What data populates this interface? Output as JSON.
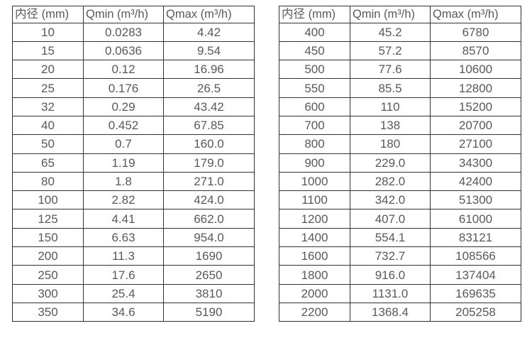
{
  "page": {
    "background": "#ffffff",
    "border_color": "#333333",
    "text_color": "#595959"
  },
  "tables": [
    {
      "name": "flow-rate-table-small-diameters",
      "headers": [
        "内径 (mm)",
        "Qmin (m³/h)",
        "Qmax (m³/h)"
      ],
      "rows": [
        [
          "10",
          "0.0283",
          "4.42"
        ],
        [
          "15",
          "0.0636",
          "9.54"
        ],
        [
          "20",
          "0.12",
          "16.96"
        ],
        [
          "25",
          "0.176",
          "26.5"
        ],
        [
          "32",
          "0.29",
          "43.42"
        ],
        [
          "40",
          "0.452",
          "67.85"
        ],
        [
          "50",
          "0.7",
          "160.0"
        ],
        [
          "65",
          "1.19",
          "179.0"
        ],
        [
          "80",
          "1.8",
          "271.0"
        ],
        [
          "100",
          "2.82",
          "424.0"
        ],
        [
          "125",
          "4.41",
          "662.0"
        ],
        [
          "150",
          "6.63",
          "954.0"
        ],
        [
          "200",
          "11.3",
          "1690"
        ],
        [
          "250",
          "17.6",
          "2650"
        ],
        [
          "300",
          "25.4",
          "3810"
        ],
        [
          "350",
          "34.6",
          "5190"
        ]
      ]
    },
    {
      "name": "flow-rate-table-large-diameters",
      "headers": [
        "内径 (mm)",
        "Qmin (m³/h)",
        "Qmax (m³/h)"
      ],
      "rows": [
        [
          "400",
          "45.2",
          "6780"
        ],
        [
          "450",
          "57.2",
          "8570"
        ],
        [
          "500",
          "77.6",
          "10600"
        ],
        [
          "550",
          "85.5",
          "12800"
        ],
        [
          "600",
          "110",
          "15200"
        ],
        [
          "700",
          "138",
          "20700"
        ],
        [
          "800",
          "180",
          "27100"
        ],
        [
          "900",
          "229.0",
          "34300"
        ],
        [
          "1000",
          "282.0",
          "42400"
        ],
        [
          "1100",
          "342.0",
          "51300"
        ],
        [
          "1200",
          "407.0",
          "61000"
        ],
        [
          "1400",
          "554.1",
          "83121"
        ],
        [
          "1600",
          "732.7",
          "108566"
        ],
        [
          "1800",
          "916.0",
          "137404"
        ],
        [
          "2000",
          "1131.0",
          "169635"
        ],
        [
          "2200",
          "1368.4",
          "205258"
        ]
      ]
    }
  ]
}
